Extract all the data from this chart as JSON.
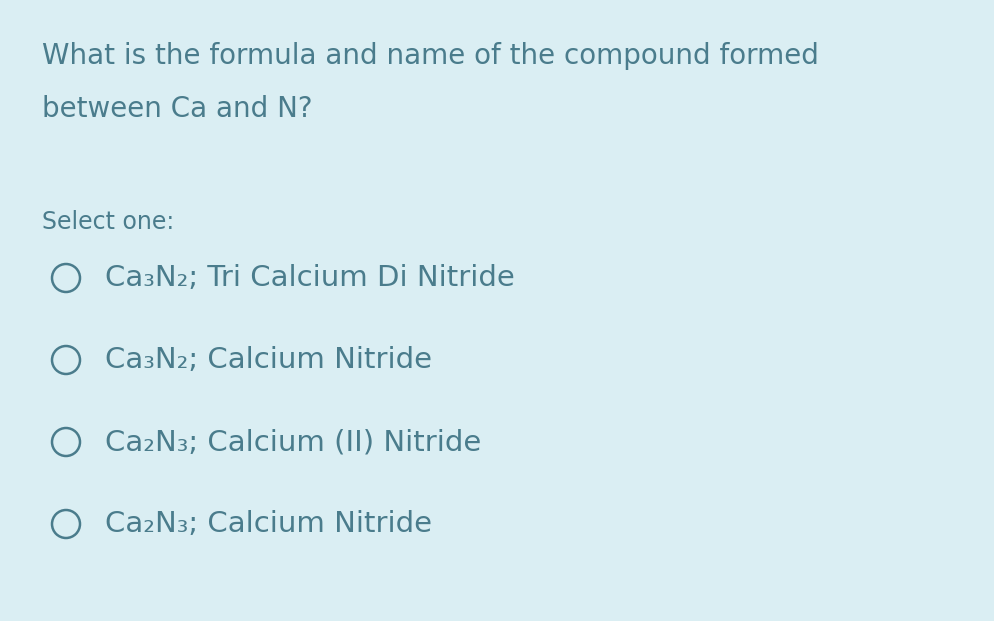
{
  "background_color": "#daeef3",
  "text_color": "#4a7c8c",
  "title_lines": [
    "What is the formula and name of the compound formed",
    "between Ca and N?"
  ],
  "select_label": "Select one:",
  "options": [
    {
      "formula": "Ca₃N₂",
      "name": "; Tri Calcium Di Nitride"
    },
    {
      "formula": "Ca₃N₂",
      "name": "; Calcium Nitride"
    },
    {
      "formula": "Ca₂N₃",
      "name": "; Calcium (II) Nitride"
    },
    {
      "formula": "Ca₂N₃",
      "name": "; Calcium Nitride"
    }
  ],
  "title_fontsize": 20,
  "select_fontsize": 17,
  "option_fontsize": 21,
  "figsize": [
    9.94,
    6.21
  ],
  "dpi": 100
}
